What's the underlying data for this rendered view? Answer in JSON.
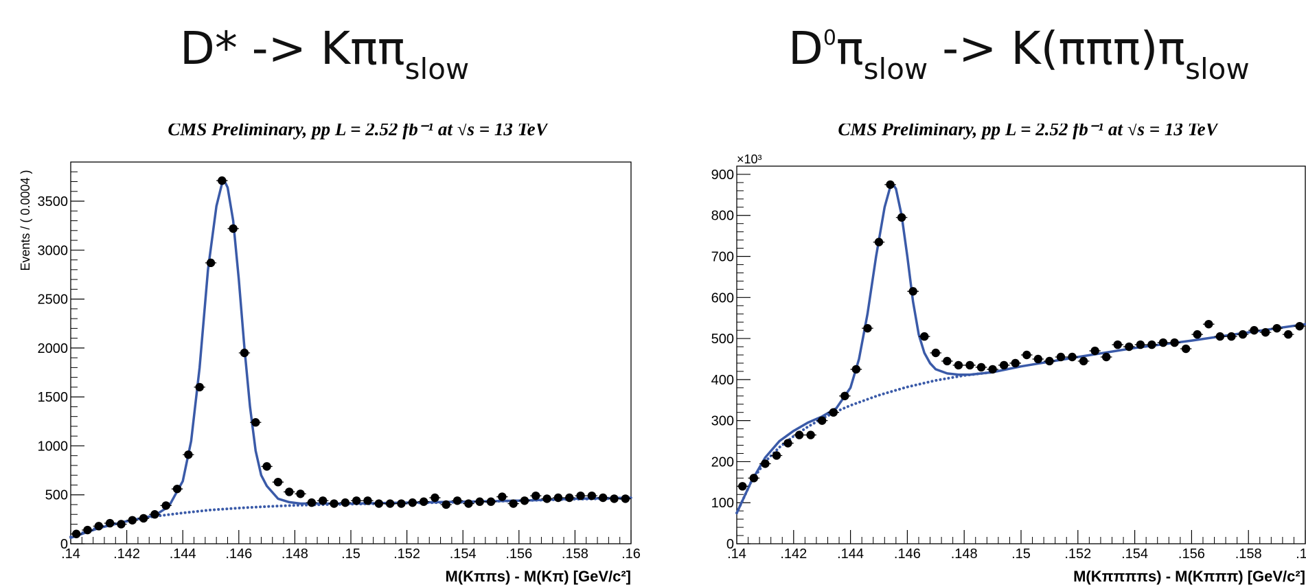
{
  "slide": {
    "left_title": {
      "main": "D* -> Kππ",
      "sub": "slow"
    },
    "right_title": {
      "main": "D",
      "sup": "0",
      "pi": "π",
      "sub1": "slow",
      "mid": " -> K(πππ)π",
      "sub2": "slow"
    }
  },
  "colors": {
    "fit": "#3a5aa8",
    "data": "#000000",
    "background": "#ffffff"
  },
  "chart_data": [
    {
      "type": "scatter",
      "title": "CMS Preliminary, pp L = 2.52 fb⁻¹ at  √s = 13 TeV",
      "xlabel": "M(Kππs) - M(Kπ) [GeV/c²]",
      "ylabel": "Events / ( 0.0004 )",
      "xlim": [
        0.14,
        0.16
      ],
      "ylim": [
        0,
        3900
      ],
      "xticks": [
        0.14,
        0.142,
        0.144,
        0.146,
        0.148,
        0.15,
        0.152,
        0.154,
        0.156,
        0.158,
        0.16
      ],
      "yticks": [
        0,
        500,
        1000,
        1500,
        2000,
        2500,
        3000,
        3500
      ],
      "series": [
        {
          "role": "data",
          "x": [
            0.1402,
            0.1406,
            0.141,
            0.1414,
            0.1418,
            0.1422,
            0.1426,
            0.143,
            0.1434,
            0.1438,
            0.1442,
            0.1446,
            0.145,
            0.1454,
            0.1458,
            0.1462,
            0.1466,
            0.147,
            0.1474,
            0.1478,
            0.1482,
            0.1486,
            0.149,
            0.1494,
            0.1498,
            0.1502,
            0.1506,
            0.151,
            0.1514,
            0.1518,
            0.1522,
            0.1526,
            0.153,
            0.1534,
            0.1538,
            0.1542,
            0.1546,
            0.155,
            0.1554,
            0.1558,
            0.1562,
            0.1566,
            0.157,
            0.1574,
            0.1578,
            0.1582,
            0.1586,
            0.159,
            0.1594,
            0.1598
          ],
          "y": [
            100,
            140,
            180,
            210,
            200,
            240,
            260,
            300,
            390,
            560,
            910,
            1600,
            2870,
            3710,
            3220,
            1950,
            1240,
            790,
            630,
            530,
            510,
            420,
            440,
            410,
            420,
            440,
            440,
            410,
            410,
            410,
            420,
            430,
            470,
            400,
            440,
            410,
            430,
            430,
            480,
            410,
            440,
            490,
            460,
            470,
            470,
            490,
            490,
            470,
            460,
            460
          ]
        },
        {
          "role": "fit-total",
          "x": [
            0.14,
            0.141,
            0.142,
            0.143,
            0.1435,
            0.144,
            0.1443,
            0.1446,
            0.1449,
            0.1452,
            0.1454,
            0.1455,
            0.1456,
            0.1458,
            0.146,
            0.1462,
            0.1464,
            0.1466,
            0.1468,
            0.147,
            0.1474,
            0.1478,
            0.1482,
            0.149,
            0.15,
            0.152,
            0.154,
            0.156,
            0.158,
            0.16
          ],
          "y": [
            60,
            160,
            230,
            290,
            380,
            640,
            1050,
            1800,
            2800,
            3450,
            3680,
            3700,
            3640,
            3300,
            2700,
            2000,
            1400,
            950,
            700,
            590,
            460,
            425,
            410,
            410,
            410,
            420,
            430,
            440,
            460,
            470
          ]
        },
        {
          "role": "fit-background",
          "x": [
            0.14,
            0.141,
            0.142,
            0.143,
            0.144,
            0.145,
            0.146,
            0.147,
            0.148,
            0.149,
            0.15,
            0.152,
            0.154,
            0.156,
            0.158,
            0.16
          ],
          "y": [
            70,
            170,
            230,
            280,
            315,
            345,
            365,
            380,
            392,
            400,
            405,
            415,
            425,
            440,
            455,
            465
          ]
        }
      ]
    },
    {
      "type": "scatter",
      "title": "CMS Preliminary, pp L = 2.52 fb⁻¹ at  √s = 13 TeV",
      "xlabel": "M(Kππππs) - M(Kπππ) [GeV/c²]",
      "ylabel": "",
      "y_multiplier": "×10³",
      "xlim": [
        0.14,
        0.16
      ],
      "ylim": [
        0,
        920
      ],
      "xticks": [
        0.14,
        0.142,
        0.144,
        0.146,
        0.148,
        0.15,
        0.152,
        0.154,
        0.156,
        0.158,
        0.16
      ],
      "yticks": [
        0,
        100,
        200,
        300,
        400,
        500,
        600,
        700,
        800,
        900
      ],
      "series": [
        {
          "role": "data",
          "x": [
            0.1402,
            0.1406,
            0.141,
            0.1414,
            0.1418,
            0.1422,
            0.1426,
            0.143,
            0.1434,
            0.1438,
            0.1442,
            0.1446,
            0.145,
            0.1454,
            0.1458,
            0.1462,
            0.1466,
            0.147,
            0.1474,
            0.1478,
            0.1482,
            0.1486,
            0.149,
            0.1494,
            0.1498,
            0.1502,
            0.1506,
            0.151,
            0.1514,
            0.1518,
            0.1522,
            0.1526,
            0.153,
            0.1534,
            0.1538,
            0.1542,
            0.1546,
            0.155,
            0.1554,
            0.1558,
            0.1562,
            0.1566,
            0.157,
            0.1574,
            0.1578,
            0.1582,
            0.1586,
            0.159,
            0.1594,
            0.1598
          ],
          "y": [
            140,
            160,
            195,
            215,
            245,
            265,
            265,
            300,
            320,
            360,
            425,
            525,
            735,
            875,
            795,
            615,
            505,
            465,
            445,
            435,
            435,
            430,
            425,
            435,
            440,
            460,
            450,
            445,
            455,
            455,
            445,
            470,
            455,
            485,
            480,
            485,
            485,
            490,
            490,
            475,
            510,
            535,
            505,
            505,
            510,
            520,
            515,
            525,
            510,
            530
          ]
        },
        {
          "role": "fit-total",
          "x": [
            0.14,
            0.1405,
            0.141,
            0.1415,
            0.142,
            0.1425,
            0.143,
            0.1435,
            0.144,
            0.1443,
            0.1446,
            0.1449,
            0.1452,
            0.1454,
            0.1455,
            0.1456,
            0.1458,
            0.146,
            0.1462,
            0.1464,
            0.1466,
            0.1468,
            0.147,
            0.1474,
            0.1478,
            0.1482,
            0.149,
            0.15,
            0.152,
            0.154,
            0.156,
            0.158,
            0.16
          ],
          "y": [
            75,
            150,
            210,
            250,
            275,
            295,
            310,
            330,
            380,
            450,
            560,
            700,
            820,
            870,
            875,
            865,
            800,
            700,
            590,
            510,
            465,
            440,
            425,
            415,
            412,
            412,
            418,
            432,
            455,
            477,
            495,
            515,
            535
          ]
        },
        {
          "role": "fit-background",
          "x": [
            0.14,
            0.1405,
            0.141,
            0.1415,
            0.142,
            0.1425,
            0.143,
            0.1435,
            0.144,
            0.145,
            0.146,
            0.147,
            0.148,
            0.149
          ],
          "y": [
            75,
            150,
            200,
            235,
            262,
            285,
            305,
            322,
            337,
            362,
            382,
            398,
            410,
            418
          ]
        }
      ]
    }
  ]
}
